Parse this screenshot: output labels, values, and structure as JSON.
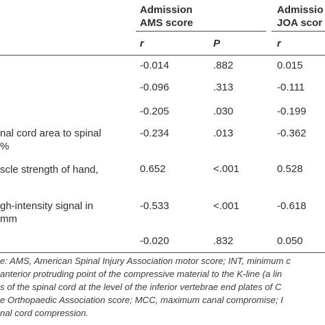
{
  "header": {
    "ams_group": [
      "Admission",
      "AMS score"
    ],
    "joa_group": [
      "Admissio",
      "JOA scor"
    ]
  },
  "subheader": {
    "r1": "r",
    "p1": "P",
    "r2": "r"
  },
  "rows": [
    {
      "label": [],
      "ams_r": "-0.014",
      "ams_p": ".882",
      "joa_r": "0.015"
    },
    {
      "label": [],
      "ams_r": "-0.096",
      "ams_p": ".313",
      "joa_r": "-0.111"
    },
    {
      "label": [],
      "ams_r": "-0.205",
      "ams_p": ".030",
      "joa_r": "-0.199"
    },
    {
      "label": [
        "nal cord area to spinal",
        "%"
      ],
      "ams_r": "-0.234",
      "ams_p": ".013",
      "joa_r": "-0.362"
    },
    {
      "label": [
        "scle strength of hand,"
      ],
      "ams_r": "0.652",
      "ams_p": "<.001",
      "joa_r": "0.528"
    },
    {
      "label": [
        "gh-intensity signal in",
        "mm"
      ],
      "ams_r": "-0.533",
      "ams_p": "<.001",
      "joa_r": "-0.618"
    },
    {
      "label": [],
      "ams_r": "-0.020",
      "ams_p": ".832",
      "joa_r": "0.050"
    }
  ],
  "footnote": [
    "e: AMS, American Spinal Injury Association motor score; INT, minimum c",
    "anterior protruding point of the compressive material to the K-line (a lin",
    "s of the spinal cord at the level of the inferior vertebrae end plates of C",
    "e Orthopaedic Association score; MCC, maximum canal compromise; I",
    "nal cord compression."
  ],
  "colors": {
    "rule": "#4a4a4a",
    "text": "#2e2e2e"
  }
}
